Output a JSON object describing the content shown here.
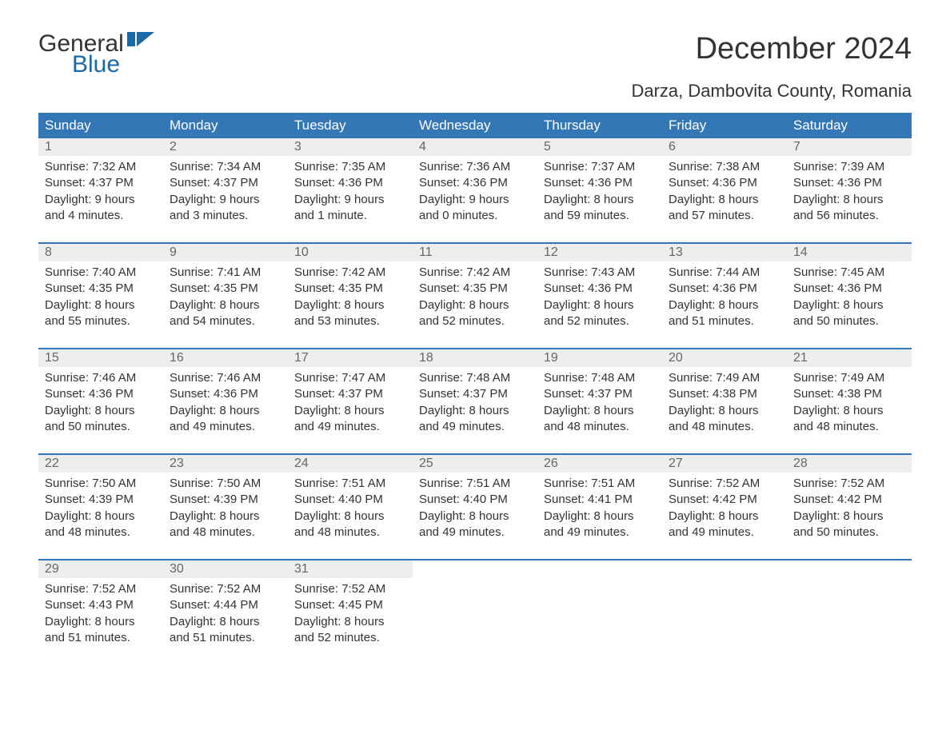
{
  "logo": {
    "word1": "General",
    "word2": "Blue"
  },
  "title": "December 2024",
  "location": "Darza, Dambovita County, Romania",
  "day_headers": [
    "Sunday",
    "Monday",
    "Tuesday",
    "Wednesday",
    "Thursday",
    "Friday",
    "Saturday"
  ],
  "colors": {
    "header_bg": "#3477b6",
    "header_text": "#ffffff",
    "daynum_bg": "#eeeeee",
    "daynum_text": "#666666",
    "body_text": "#333333",
    "logo_blue": "#1b6aa8",
    "background": "#ffffff"
  },
  "weeks": [
    [
      {
        "n": "1",
        "sunrise": "Sunrise: 7:32 AM",
        "sunset": "Sunset: 4:37 PM",
        "d1": "Daylight: 9 hours",
        "d2": "and 4 minutes."
      },
      {
        "n": "2",
        "sunrise": "Sunrise: 7:34 AM",
        "sunset": "Sunset: 4:37 PM",
        "d1": "Daylight: 9 hours",
        "d2": "and 3 minutes."
      },
      {
        "n": "3",
        "sunrise": "Sunrise: 7:35 AM",
        "sunset": "Sunset: 4:36 PM",
        "d1": "Daylight: 9 hours",
        "d2": "and 1 minute."
      },
      {
        "n": "4",
        "sunrise": "Sunrise: 7:36 AM",
        "sunset": "Sunset: 4:36 PM",
        "d1": "Daylight: 9 hours",
        "d2": "and 0 minutes."
      },
      {
        "n": "5",
        "sunrise": "Sunrise: 7:37 AM",
        "sunset": "Sunset: 4:36 PM",
        "d1": "Daylight: 8 hours",
        "d2": "and 59 minutes."
      },
      {
        "n": "6",
        "sunrise": "Sunrise: 7:38 AM",
        "sunset": "Sunset: 4:36 PM",
        "d1": "Daylight: 8 hours",
        "d2": "and 57 minutes."
      },
      {
        "n": "7",
        "sunrise": "Sunrise: 7:39 AM",
        "sunset": "Sunset: 4:36 PM",
        "d1": "Daylight: 8 hours",
        "d2": "and 56 minutes."
      }
    ],
    [
      {
        "n": "8",
        "sunrise": "Sunrise: 7:40 AM",
        "sunset": "Sunset: 4:35 PM",
        "d1": "Daylight: 8 hours",
        "d2": "and 55 minutes."
      },
      {
        "n": "9",
        "sunrise": "Sunrise: 7:41 AM",
        "sunset": "Sunset: 4:35 PM",
        "d1": "Daylight: 8 hours",
        "d2": "and 54 minutes."
      },
      {
        "n": "10",
        "sunrise": "Sunrise: 7:42 AM",
        "sunset": "Sunset: 4:35 PM",
        "d1": "Daylight: 8 hours",
        "d2": "and 53 minutes."
      },
      {
        "n": "11",
        "sunrise": "Sunrise: 7:42 AM",
        "sunset": "Sunset: 4:35 PM",
        "d1": "Daylight: 8 hours",
        "d2": "and 52 minutes."
      },
      {
        "n": "12",
        "sunrise": "Sunrise: 7:43 AM",
        "sunset": "Sunset: 4:36 PM",
        "d1": "Daylight: 8 hours",
        "d2": "and 52 minutes."
      },
      {
        "n": "13",
        "sunrise": "Sunrise: 7:44 AM",
        "sunset": "Sunset: 4:36 PM",
        "d1": "Daylight: 8 hours",
        "d2": "and 51 minutes."
      },
      {
        "n": "14",
        "sunrise": "Sunrise: 7:45 AM",
        "sunset": "Sunset: 4:36 PM",
        "d1": "Daylight: 8 hours",
        "d2": "and 50 minutes."
      }
    ],
    [
      {
        "n": "15",
        "sunrise": "Sunrise: 7:46 AM",
        "sunset": "Sunset: 4:36 PM",
        "d1": "Daylight: 8 hours",
        "d2": "and 50 minutes."
      },
      {
        "n": "16",
        "sunrise": "Sunrise: 7:46 AM",
        "sunset": "Sunset: 4:36 PM",
        "d1": "Daylight: 8 hours",
        "d2": "and 49 minutes."
      },
      {
        "n": "17",
        "sunrise": "Sunrise: 7:47 AM",
        "sunset": "Sunset: 4:37 PM",
        "d1": "Daylight: 8 hours",
        "d2": "and 49 minutes."
      },
      {
        "n": "18",
        "sunrise": "Sunrise: 7:48 AM",
        "sunset": "Sunset: 4:37 PM",
        "d1": "Daylight: 8 hours",
        "d2": "and 49 minutes."
      },
      {
        "n": "19",
        "sunrise": "Sunrise: 7:48 AM",
        "sunset": "Sunset: 4:37 PM",
        "d1": "Daylight: 8 hours",
        "d2": "and 48 minutes."
      },
      {
        "n": "20",
        "sunrise": "Sunrise: 7:49 AM",
        "sunset": "Sunset: 4:38 PM",
        "d1": "Daylight: 8 hours",
        "d2": "and 48 minutes."
      },
      {
        "n": "21",
        "sunrise": "Sunrise: 7:49 AM",
        "sunset": "Sunset: 4:38 PM",
        "d1": "Daylight: 8 hours",
        "d2": "and 48 minutes."
      }
    ],
    [
      {
        "n": "22",
        "sunrise": "Sunrise: 7:50 AM",
        "sunset": "Sunset: 4:39 PM",
        "d1": "Daylight: 8 hours",
        "d2": "and 48 minutes."
      },
      {
        "n": "23",
        "sunrise": "Sunrise: 7:50 AM",
        "sunset": "Sunset: 4:39 PM",
        "d1": "Daylight: 8 hours",
        "d2": "and 48 minutes."
      },
      {
        "n": "24",
        "sunrise": "Sunrise: 7:51 AM",
        "sunset": "Sunset: 4:40 PM",
        "d1": "Daylight: 8 hours",
        "d2": "and 48 minutes."
      },
      {
        "n": "25",
        "sunrise": "Sunrise: 7:51 AM",
        "sunset": "Sunset: 4:40 PM",
        "d1": "Daylight: 8 hours",
        "d2": "and 49 minutes."
      },
      {
        "n": "26",
        "sunrise": "Sunrise: 7:51 AM",
        "sunset": "Sunset: 4:41 PM",
        "d1": "Daylight: 8 hours",
        "d2": "and 49 minutes."
      },
      {
        "n": "27",
        "sunrise": "Sunrise: 7:52 AM",
        "sunset": "Sunset: 4:42 PM",
        "d1": "Daylight: 8 hours",
        "d2": "and 49 minutes."
      },
      {
        "n": "28",
        "sunrise": "Sunrise: 7:52 AM",
        "sunset": "Sunset: 4:42 PM",
        "d1": "Daylight: 8 hours",
        "d2": "and 50 minutes."
      }
    ],
    [
      {
        "n": "29",
        "sunrise": "Sunrise: 7:52 AM",
        "sunset": "Sunset: 4:43 PM",
        "d1": "Daylight: 8 hours",
        "d2": "and 51 minutes."
      },
      {
        "n": "30",
        "sunrise": "Sunrise: 7:52 AM",
        "sunset": "Sunset: 4:44 PM",
        "d1": "Daylight: 8 hours",
        "d2": "and 51 minutes."
      },
      {
        "n": "31",
        "sunrise": "Sunrise: 7:52 AM",
        "sunset": "Sunset: 4:45 PM",
        "d1": "Daylight: 8 hours",
        "d2": "and 52 minutes."
      },
      null,
      null,
      null,
      null
    ]
  ]
}
